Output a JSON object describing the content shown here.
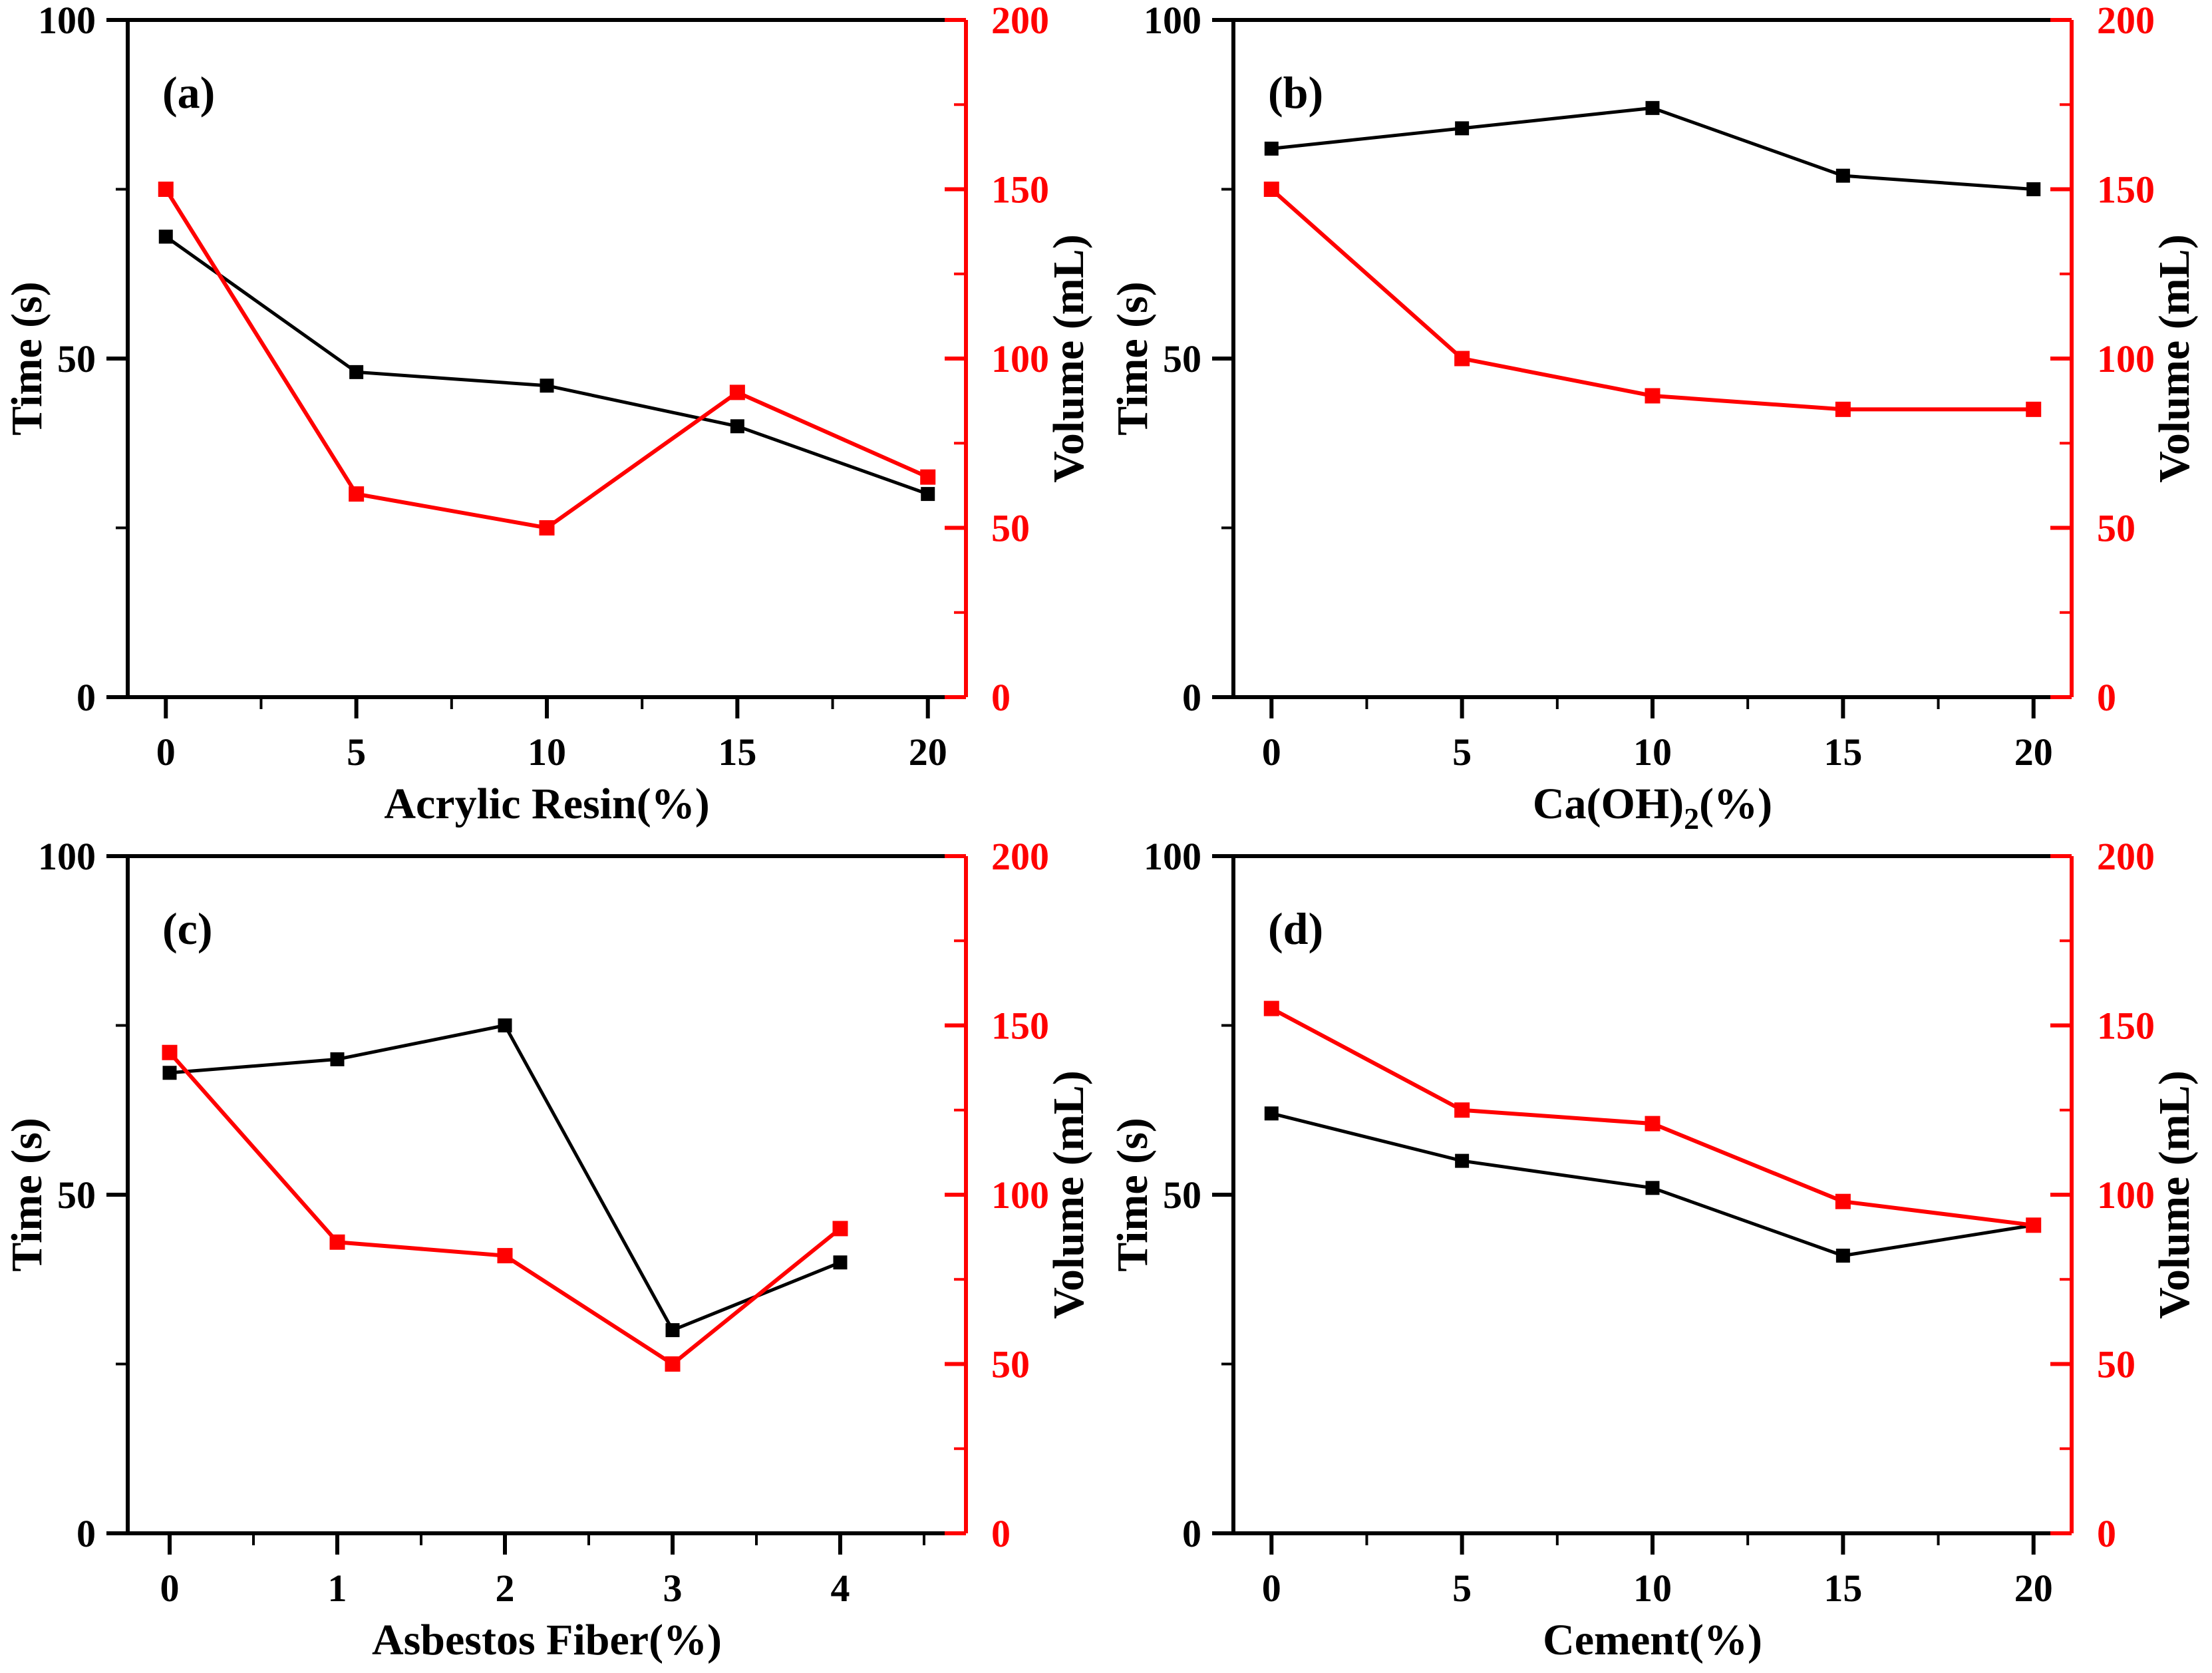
{
  "figure": {
    "background": "#ffffff",
    "series_colors": {
      "time": "#000000",
      "volume": "#ff0000"
    },
    "y_left_axis": {
      "title": "Time (s)",
      "range": [
        0,
        100
      ],
      "major_ticks": [
        {
          "v": 0,
          "label": "0"
        },
        {
          "v": 50,
          "label": "50"
        },
        {
          "v": 100,
          "label": "100"
        }
      ],
      "minor_ticks": [
        25,
        75
      ]
    },
    "y_right_axis": {
      "title": "Volume (mL)",
      "range": [
        0,
        200
      ],
      "major_ticks": [
        {
          "v": 0,
          "label": "0"
        },
        {
          "v": 50,
          "label": "50"
        },
        {
          "v": 100,
          "label": "100"
        },
        {
          "v": 150,
          "label": "150"
        },
        {
          "v": 200,
          "label": "200"
        }
      ],
      "minor_ticks": [
        25,
        75,
        125,
        175
      ]
    }
  },
  "chart_data": [
    {
      "type": "line",
      "panel_label": "(a)",
      "x_axis": {
        "title": "Acrylic Resin(%)",
        "range": [
          -1,
          21
        ],
        "major_ticks": [
          {
            "v": 0,
            "label": "0"
          },
          {
            "v": 5,
            "label": "5"
          },
          {
            "v": 10,
            "label": "10"
          },
          {
            "v": 15,
            "label": "15"
          },
          {
            "v": 20,
            "label": "20"
          }
        ],
        "minor_ticks": [
          2.5,
          7.5,
          12.5,
          17.5
        ]
      },
      "x": [
        0,
        5,
        10,
        15,
        20
      ],
      "series": [
        {
          "name": "Time (s)",
          "axis": "left",
          "color_key": "time",
          "values": [
            68,
            48,
            46,
            40,
            30
          ]
        },
        {
          "name": "Volume (mL)",
          "axis": "right",
          "color_key": "volume",
          "values": [
            150,
            60,
            50,
            90,
            65
          ]
        }
      ]
    },
    {
      "type": "line",
      "panel_label": "(b)",
      "x_axis": {
        "title": "Ca(OH)2(%)",
        "title_parts": {
          "pre": "Ca(OH)",
          "sub": "2",
          "post": "(%)"
        },
        "range": [
          -1,
          21
        ],
        "major_ticks": [
          {
            "v": 0,
            "label": "0"
          },
          {
            "v": 5,
            "label": "5"
          },
          {
            "v": 10,
            "label": "10"
          },
          {
            "v": 15,
            "label": "15"
          },
          {
            "v": 20,
            "label": "20"
          }
        ],
        "minor_ticks": [
          2.5,
          7.5,
          12.5,
          17.5
        ]
      },
      "x": [
        0,
        5,
        10,
        15,
        20
      ],
      "series": [
        {
          "name": "Time (s)",
          "axis": "left",
          "color_key": "time",
          "values": [
            81,
            84,
            87,
            77,
            75
          ]
        },
        {
          "name": "Volume (mL)",
          "axis": "right",
          "color_key": "volume",
          "values": [
            150,
            100,
            89,
            85,
            85
          ]
        }
      ]
    },
    {
      "type": "line",
      "panel_label": "(c)",
      "x_axis": {
        "title": "Asbestos Fiber(%)",
        "range": [
          -0.25,
          4.75
        ],
        "major_ticks": [
          {
            "v": 0,
            "label": "0"
          },
          {
            "v": 1,
            "label": "1"
          },
          {
            "v": 2,
            "label": "2"
          },
          {
            "v": 3,
            "label": "3"
          },
          {
            "v": 4,
            "label": "4"
          }
        ],
        "minor_ticks": [
          0.5,
          1.5,
          2.5,
          3.5,
          4.5
        ]
      },
      "x": [
        0,
        1,
        2,
        3,
        4
      ],
      "series": [
        {
          "name": "Time (s)",
          "axis": "left",
          "color_key": "time",
          "values": [
            68,
            70,
            75,
            30,
            40
          ]
        },
        {
          "name": "Volume (mL)",
          "axis": "right",
          "color_key": "volume",
          "values": [
            142,
            86,
            82,
            50,
            90
          ]
        }
      ]
    },
    {
      "type": "line",
      "panel_label": "(d)",
      "x_axis": {
        "title": "Cement(%)",
        "range": [
          -1,
          21
        ],
        "major_ticks": [
          {
            "v": 0,
            "label": "0"
          },
          {
            "v": 5,
            "label": "5"
          },
          {
            "v": 10,
            "label": "10"
          },
          {
            "v": 15,
            "label": "15"
          },
          {
            "v": 20,
            "label": "20"
          }
        ],
        "minor_ticks": [
          2.5,
          7.5,
          12.5,
          17.5
        ]
      },
      "x": [
        0,
        5,
        10,
        15,
        20
      ],
      "series": [
        {
          "name": "Time (s)",
          "axis": "left",
          "color_key": "time",
          "values": [
            62,
            55,
            51,
            41,
            45.5
          ]
        },
        {
          "name": "Volume (mL)",
          "axis": "right",
          "color_key": "volume",
          "values": [
            155,
            125,
            121,
            98,
            91
          ]
        }
      ]
    }
  ]
}
